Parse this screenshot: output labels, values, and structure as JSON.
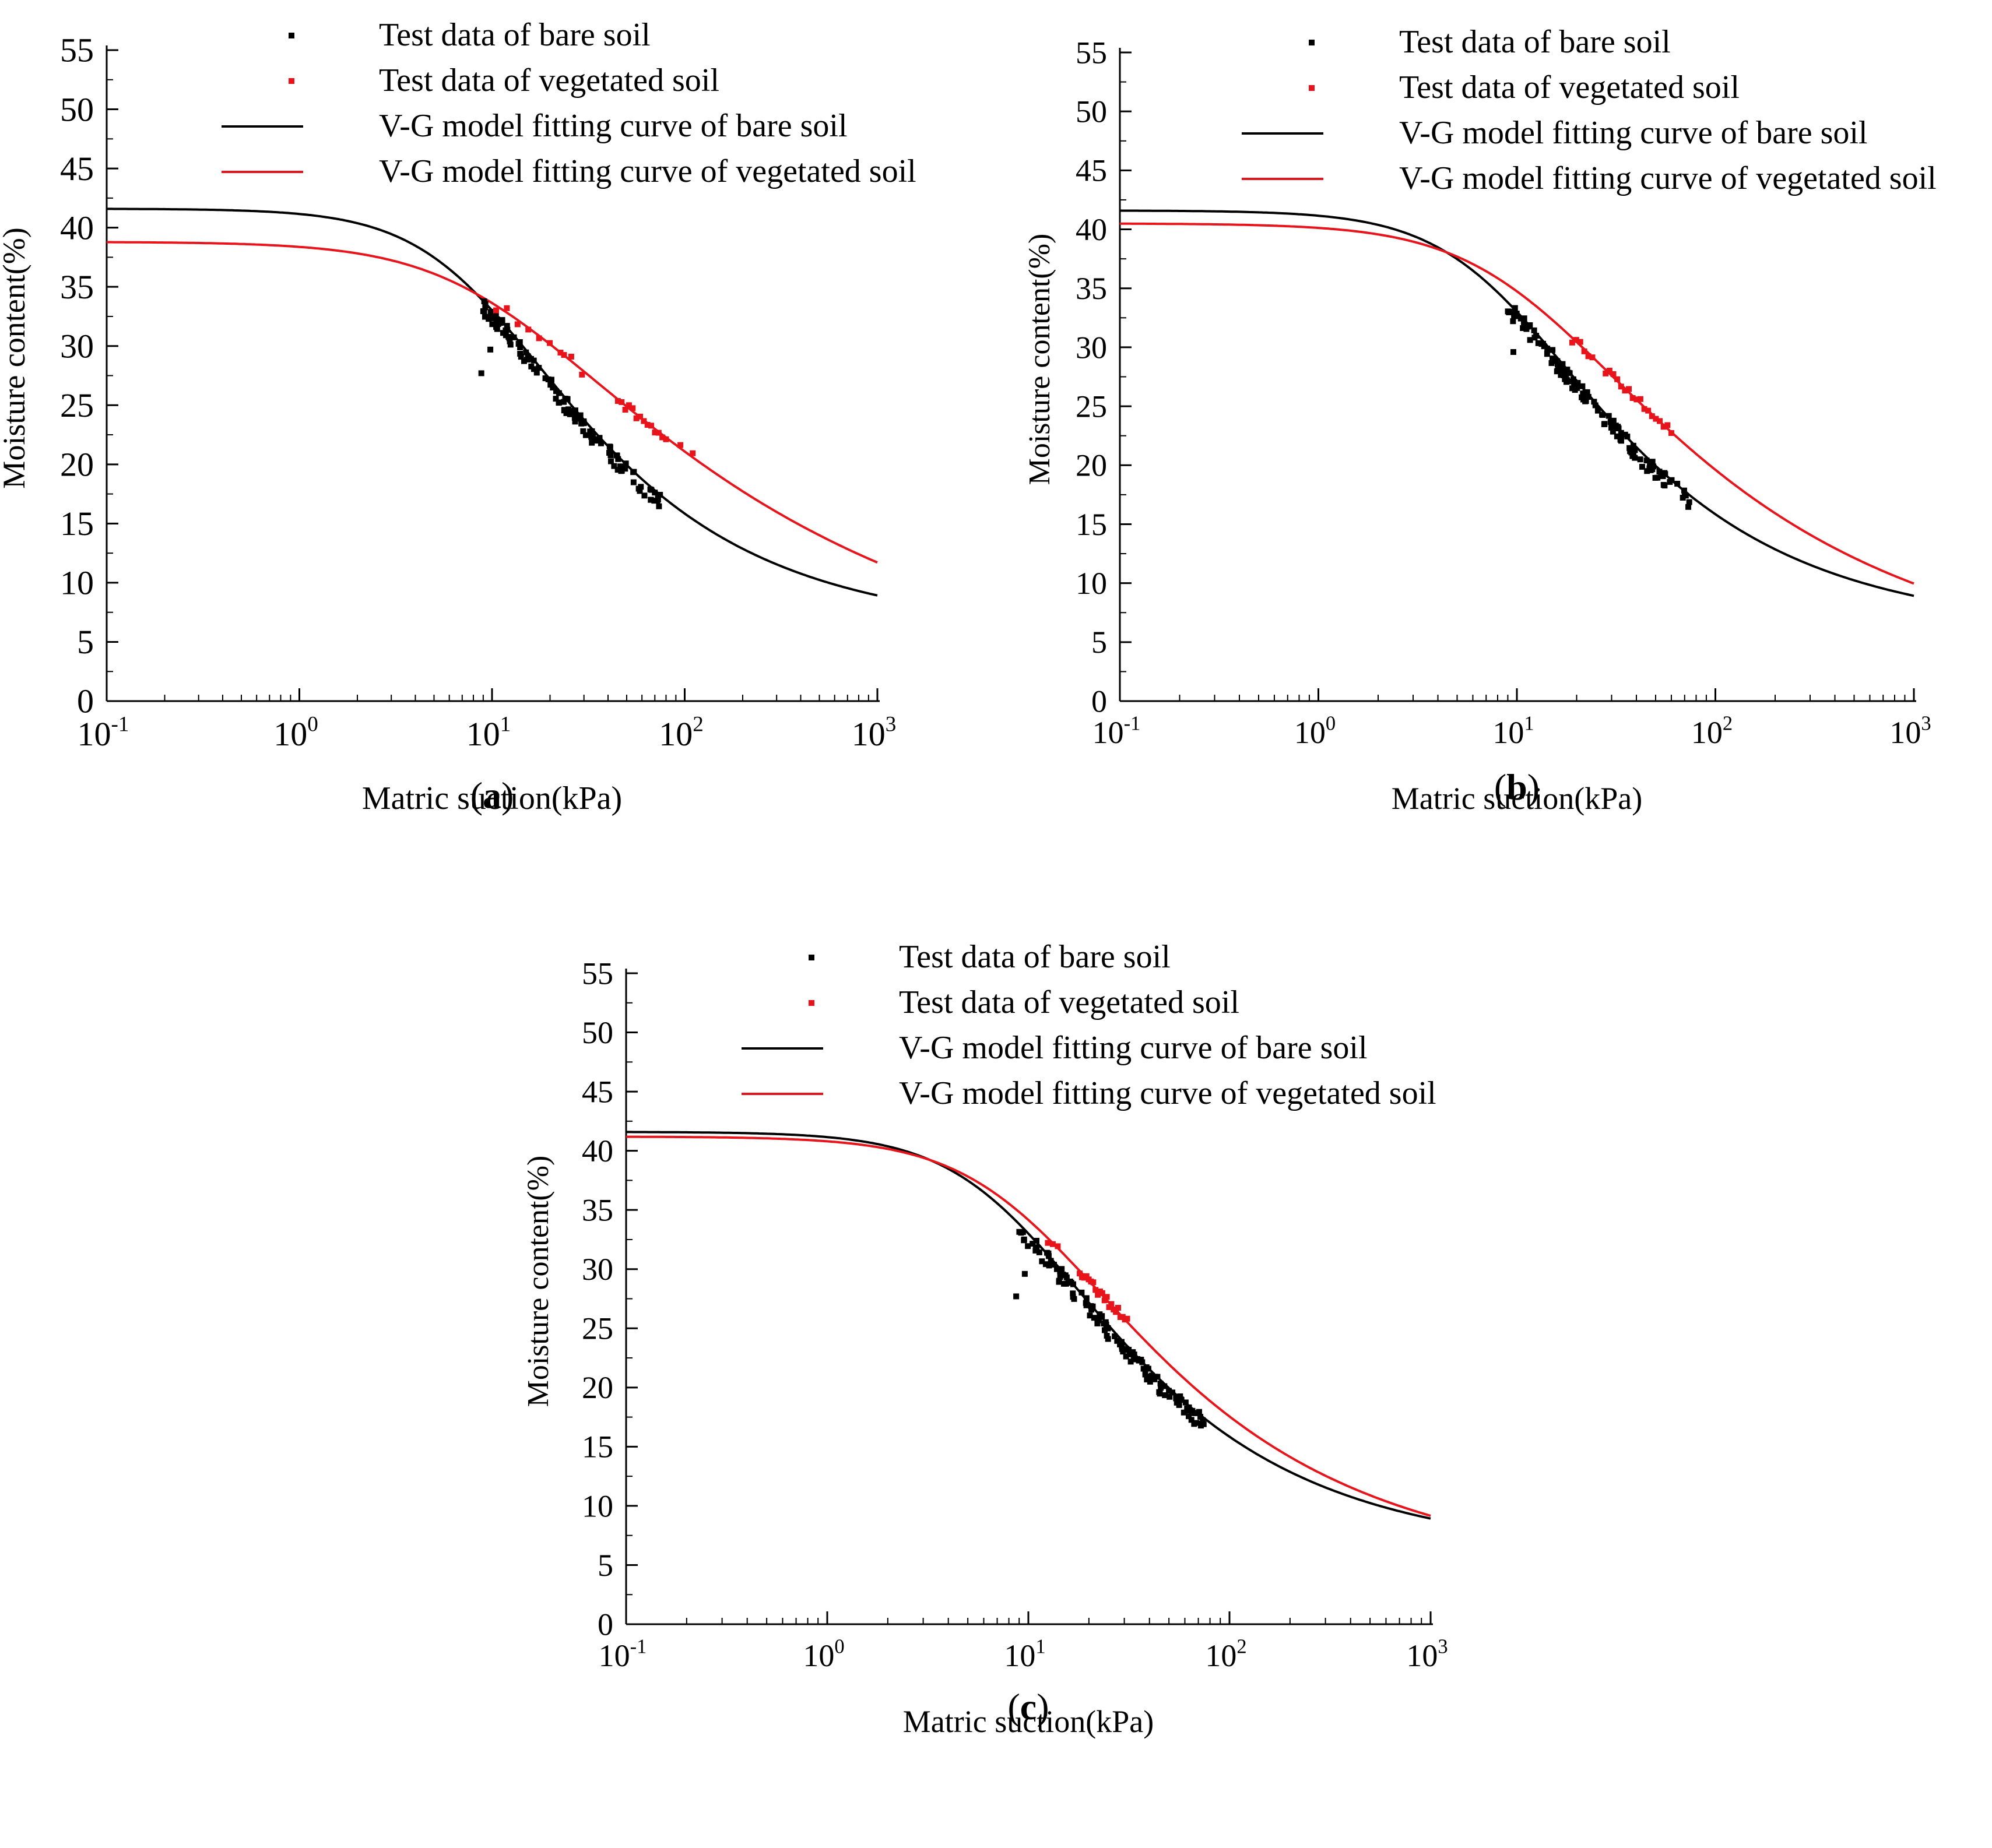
{
  "colors": {
    "bare": "#000000",
    "vegetated": "#e8141b",
    "axis": "#000000"
  },
  "chart_data": [
    {
      "type": "scatter",
      "panel_label": "(a)",
      "xlabel": "Matric suction(kPa)",
      "ylabel": "Moisture content(%)",
      "xscale": "log",
      "xlim": [
        0.1,
        1000
      ],
      "ylim": [
        0,
        55
      ],
      "yticks": [
        "0",
        "5",
        "10",
        "15",
        "20",
        "25",
        "30",
        "35",
        "40",
        "45",
        "50",
        "55"
      ],
      "xticks": [
        {
          "base": "10",
          "exp": "-1"
        },
        {
          "base": "10",
          "exp": "0"
        },
        {
          "base": "10",
          "exp": "1"
        },
        {
          "base": "10",
          "exp": "2"
        },
        {
          "base": "10",
          "exp": "3"
        }
      ],
      "legend_position": "top",
      "legend": {
        "bare_points": "Test data of bare soil",
        "veg_points": "Test data of vegetated soil",
        "bare_curve": "V-G model fitting curve of bare soil",
        "veg_curve": "V-G model fitting curve of vegetated soil"
      },
      "series": [
        {
          "name": "V-G model fitting curve of bare soil",
          "kind": "line",
          "color": "#000000",
          "ts": 41.6,
          "tr": 5.9,
          "a": 0.115,
          "n": 1.52
        },
        {
          "name": "V-G model fitting curve of vegetated soil",
          "kind": "line",
          "color": "#e8141b",
          "ts": 38.8,
          "tr": 0,
          "a": 0.1,
          "n": 1.26
        }
      ],
      "bare_points": {
        "from": 9,
        "to": 75,
        "count": 130,
        "tops": [
          [
            8.8,
            27.7
          ],
          [
            9.8,
            29.7
          ]
        ]
      },
      "veg_points": {
        "ranges": [
          [
            10.5,
            29.3,
            9
          ],
          [
            26,
            21.5,
            1
          ],
          [
            45,
            80,
            14
          ],
          [
            95,
            110,
            2
          ]
        ]
      }
    },
    {
      "type": "scatter",
      "panel_label": "(b)",
      "xlabel": "Matric suction(kPa)",
      "ylabel": "Moisture content(%)",
      "xscale": "log",
      "xlim": [
        0.1,
        1000
      ],
      "ylim": [
        0,
        55
      ],
      "yticks": [
        "0",
        "5",
        "10",
        "15",
        "20",
        "25",
        "30",
        "35",
        "40",
        "45",
        "50",
        "55"
      ],
      "xticks": [
        {
          "base": "10",
          "exp": "-1"
        },
        {
          "base": "10",
          "exp": "0"
        },
        {
          "base": "10",
          "exp": "1"
        },
        {
          "base": "10",
          "exp": "2"
        },
        {
          "base": "10",
          "exp": "3"
        }
      ],
      "legend_position": "top",
      "legend": {
        "bare_points": "Test data of bare soil",
        "veg_points": "Test data of vegetated soil",
        "bare_curve": "V-G model fitting curve of bare soil",
        "veg_curve": "V-G model fitting curve of vegetated soil"
      },
      "series": [
        {
          "name": "V-G model fitting curve of bare soil",
          "kind": "line",
          "color": "#000000",
          "ts": 41.6,
          "tr": 5.9,
          "a": 0.115,
          "n": 1.52
        },
        {
          "name": "V-G model fitting curve of vegetated soil",
          "kind": "line",
          "color": "#e8141b",
          "ts": 40.5,
          "tr": 2.0,
          "a": 0.09,
          "n": 1.35
        }
      ],
      "bare_points": {
        "from": 9,
        "to": 75,
        "count": 130,
        "tops": [
          [
            9.6,
            29.6
          ]
        ]
      },
      "veg_points": {
        "ranges": [
          [
            19,
            24,
            6
          ],
          [
            28,
            60,
            18
          ]
        ]
      }
    },
    {
      "type": "scatter",
      "panel_label": "(c)",
      "xlabel": "Matric suction(kPa)",
      "ylabel": "Moisture content(%)",
      "xscale": "log",
      "xlim": [
        0.1,
        1000
      ],
      "ylim": [
        0,
        55
      ],
      "yticks": [
        "0",
        "5",
        "10",
        "15",
        "20",
        "25",
        "30",
        "35",
        "40",
        "45",
        "50",
        "55"
      ],
      "xticks": [
        {
          "base": "10",
          "exp": "-1"
        },
        {
          "base": "10",
          "exp": "0"
        },
        {
          "base": "10",
          "exp": "1"
        },
        {
          "base": "10",
          "exp": "2"
        },
        {
          "base": "10",
          "exp": "3"
        }
      ],
      "legend_position": "top",
      "legend": {
        "bare_points": "Test data of bare soil",
        "veg_points": "Test data of vegetated soil",
        "bare_curve": "V-G model fitting curve of bare soil",
        "veg_curve": "V-G model fitting curve of vegetated soil"
      },
      "series": [
        {
          "name": "V-G model fitting curve of bare soil",
          "kind": "line",
          "color": "#000000",
          "ts": 41.6,
          "tr": 5.9,
          "a": 0.115,
          "n": 1.52
        },
        {
          "name": "V-G model fitting curve of vegetated soil",
          "kind": "line",
          "color": "#e8141b",
          "ts": 41.2,
          "tr": 4.3,
          "a": 0.1,
          "n": 1.44
        }
      ],
      "bare_points": {
        "from": 9,
        "to": 75,
        "count": 130,
        "tops": [
          [
            9.6,
            29.6
          ],
          [
            8.7,
            27.7
          ]
        ]
      },
      "veg_points": {
        "ranges": [
          [
            12.5,
            14,
            3
          ],
          [
            18,
            31,
            22
          ]
        ]
      }
    }
  ]
}
